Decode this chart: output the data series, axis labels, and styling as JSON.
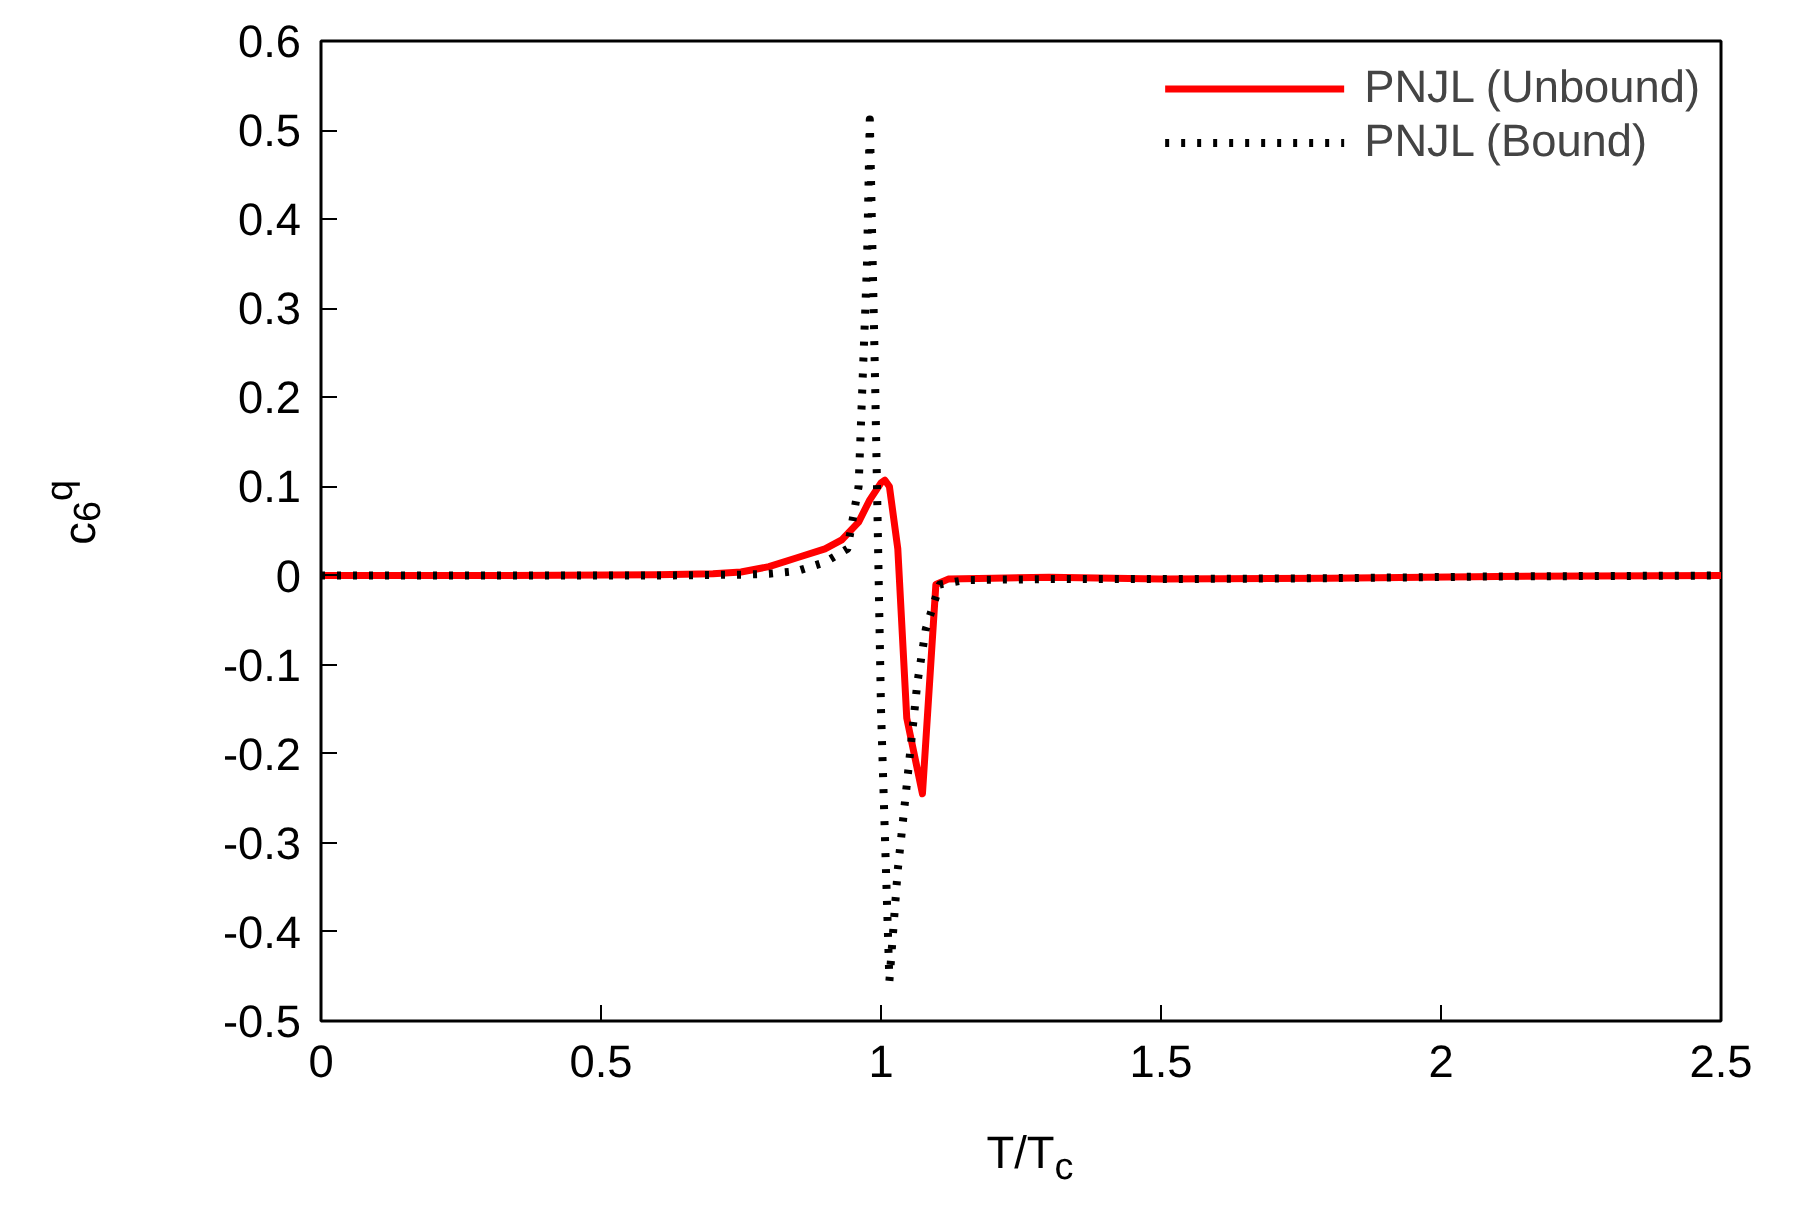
{
  "chart_data": {
    "type": "line",
    "xlabel": "T/T$_{c}$",
    "ylabel": "c$_{6}$$^{q}$",
    "xlim": [
      0,
      2.5
    ],
    "ylim": [
      -0.5,
      0.6
    ],
    "xticks": [
      0,
      0.5,
      1,
      1.5,
      2,
      2.5
    ],
    "yticks": [
      -0.5,
      -0.4,
      -0.3,
      -0.2,
      -0.1,
      0,
      0.1,
      0.2,
      0.3,
      0.4,
      0.5,
      0.6
    ],
    "grid": false,
    "legend": "top right",
    "series": [
      {
        "name": "PNJL (Unbound)",
        "color": "#ff0000",
        "line_style": "solid",
        "x": [
          0,
          0.3,
          0.6,
          0.7,
          0.75,
          0.8,
          0.85,
          0.9,
          0.93,
          0.96,
          0.98,
          1.0,
          1.007,
          1.015,
          1.03,
          1.046,
          1.074,
          1.098,
          1.12,
          1.2,
          1.3,
          1.5,
          1.8,
          2.1,
          2.5
        ],
        "values": [
          0,
          0,
          0.001,
          0.002,
          0.004,
          0.01,
          0.02,
          0.03,
          0.04,
          0.06,
          0.085,
          0.104,
          0.107,
          0.1,
          0.03,
          -0.16,
          -0.245,
          -0.01,
          -0.004,
          -0.003,
          -0.002,
          -0.004,
          -0.003,
          -0.001,
          0
        ]
      },
      {
        "name": "PNJL (Bound)",
        "color": "#000000",
        "line_style": "dotted",
        "x": [
          0,
          0.3,
          0.6,
          0.75,
          0.8,
          0.85,
          0.9,
          0.94,
          0.96,
          0.975,
          0.98,
          0.99,
          1.0,
          1.015,
          1.03,
          1.046,
          1.065,
          1.08,
          1.105,
          1.15,
          1.3,
          1.5,
          1.8,
          2.1,
          2.5
        ],
        "values": [
          0,
          0,
          0,
          0.001,
          0.002,
          0.005,
          0.015,
          0.03,
          0.1,
          0.35,
          0.512,
          0.2,
          -0.15,
          -0.455,
          -0.33,
          -0.235,
          -0.12,
          -0.06,
          -0.01,
          -0.005,
          -0.004,
          -0.004,
          -0.003,
          -0.001,
          0
        ]
      }
    ]
  }
}
